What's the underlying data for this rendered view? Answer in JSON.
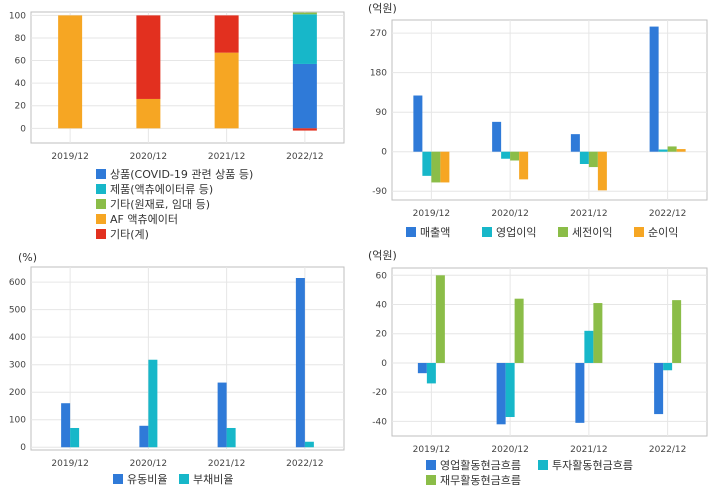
{
  "colors": {
    "blue": "#2f7ad8",
    "cyan": "#17b7c9",
    "green": "#8bbd48",
    "orange": "#f6a623",
    "red": "#e2301f",
    "grid": "#e6e6e6",
    "frame": "#bfbfbf"
  },
  "chart_data": [
    {
      "type": "bar",
      "stacked": true,
      "grid": true,
      "legend_position": "bottom",
      "unit_label": "",
      "categories": [
        "2019/12",
        "2020/12",
        "2021/12",
        "2022/12"
      ],
      "ylim": [
        -13,
        103
      ],
      "yticks": [
        "0",
        "20",
        "40",
        "60",
        "80",
        "100"
      ],
      "series": [
        {
          "name": "상품(COVID-19 관련 상품 등)",
          "color": "#2f7ad8",
          "values": [
            0,
            0,
            0,
            57
          ]
        },
        {
          "name": "제품(액츄에이터류 등)",
          "color": "#17b7c9",
          "values": [
            0,
            0,
            0,
            44
          ]
        },
        {
          "name": "기타(원재료, 임대 등)",
          "color": "#8bbd48",
          "values": [
            0,
            0,
            0,
            1.5
          ]
        },
        {
          "name": "AF 액츄에이터",
          "color": "#f6a623",
          "values": [
            100,
            26,
            67,
            0
          ]
        },
        {
          "name": "기타(계)",
          "color": "#e2301f",
          "values": [
            0,
            74,
            33,
            -2
          ]
        }
      ]
    },
    {
      "type": "bar",
      "grid": true,
      "legend_position": "bottom",
      "unit_label": "(억원)",
      "categories": [
        "2019/12",
        "2020/12",
        "2021/12",
        "2022/12"
      ],
      "ylim": [
        -110,
        300
      ],
      "yticks": [
        "-90",
        "0",
        "90",
        "180",
        "270"
      ],
      "series": [
        {
          "name": "매출액",
          "color": "#2f7ad8",
          "values": [
            128,
            68,
            40,
            285
          ]
        },
        {
          "name": "영업이익",
          "color": "#17b7c9",
          "values": [
            -55,
            -16,
            -28,
            5
          ]
        },
        {
          "name": "세전이익",
          "color": "#8bbd48",
          "values": [
            -70,
            -20,
            -35,
            12
          ]
        },
        {
          "name": "순이익",
          "color": "#f6a623",
          "values": [
            -70,
            -63,
            -88,
            6
          ]
        }
      ]
    },
    {
      "type": "bar",
      "grid": true,
      "legend_position": "bottom",
      "unit_label": "(%)",
      "categories": [
        "2019/12",
        "2020/12",
        "2021/12",
        "2022/12"
      ],
      "ylim": [
        -10,
        655
      ],
      "yticks": [
        "0",
        "100",
        "200",
        "300",
        "400",
        "500",
        "600"
      ],
      "series": [
        {
          "name": "유동비율",
          "color": "#2f7ad8",
          "values": [
            160,
            78,
            235,
            615
          ]
        },
        {
          "name": "부채비율",
          "color": "#17b7c9",
          "values": [
            70,
            318,
            70,
            20
          ]
        }
      ]
    },
    {
      "type": "bar",
      "grid": true,
      "legend_position": "bottom",
      "unit_label": "(억원)",
      "categories": [
        "2019/12",
        "2020/12",
        "2021/12",
        "2022/12"
      ],
      "ylim": [
        -50,
        65
      ],
      "yticks": [
        "-40",
        "-20",
        "0",
        "20",
        "40",
        "60"
      ],
      "series": [
        {
          "name": "영업활동현금흐름",
          "color": "#2f7ad8",
          "values": [
            -7,
            -42,
            -41,
            -35
          ]
        },
        {
          "name": "투자활동현금흐름",
          "color": "#17b7c9",
          "values": [
            -14,
            -37,
            22,
            -5
          ]
        },
        {
          "name": "재무활동현금흐름",
          "color": "#8bbd48",
          "values": [
            60,
            44,
            41,
            43
          ]
        }
      ]
    }
  ]
}
